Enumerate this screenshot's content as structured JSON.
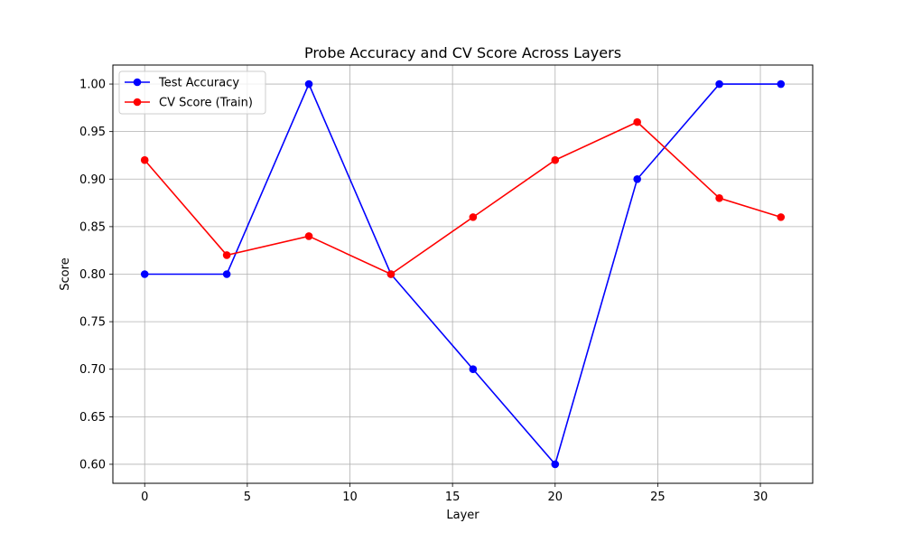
{
  "chart_data": {
    "type": "line",
    "title": "Probe Accuracy and CV Score Across Layers",
    "xlabel": "Layer",
    "ylabel": "Score",
    "x": [
      0,
      4,
      8,
      12,
      16,
      20,
      24,
      28,
      31
    ],
    "series": [
      {
        "name": "Test Accuracy",
        "color": "#0000ff",
        "values": [
          0.8,
          0.8,
          1.0,
          0.8,
          0.7,
          0.6,
          0.9,
          1.0,
          1.0
        ]
      },
      {
        "name": "CV Score (Train)",
        "color": "#ff0000",
        "values": [
          0.92,
          0.82,
          0.84,
          0.8,
          0.86,
          0.92,
          0.96,
          0.88,
          0.86
        ]
      }
    ],
    "xlim": [
      -1.55,
      32.55
    ],
    "ylim": [
      0.58,
      1.02
    ],
    "xticks": [
      0,
      5,
      10,
      15,
      20,
      25,
      30
    ],
    "xtick_labels": [
      "0",
      "5",
      "10",
      "15",
      "20",
      "25",
      "30"
    ],
    "yticks": [
      0.6,
      0.65,
      0.7,
      0.75,
      0.8,
      0.85,
      0.9,
      0.95,
      1.0
    ],
    "ytick_labels": [
      "0.60",
      "0.65",
      "0.70",
      "0.75",
      "0.80",
      "0.85",
      "0.90",
      "0.95",
      "1.00"
    ],
    "grid": true,
    "legend_position": "top-left"
  }
}
